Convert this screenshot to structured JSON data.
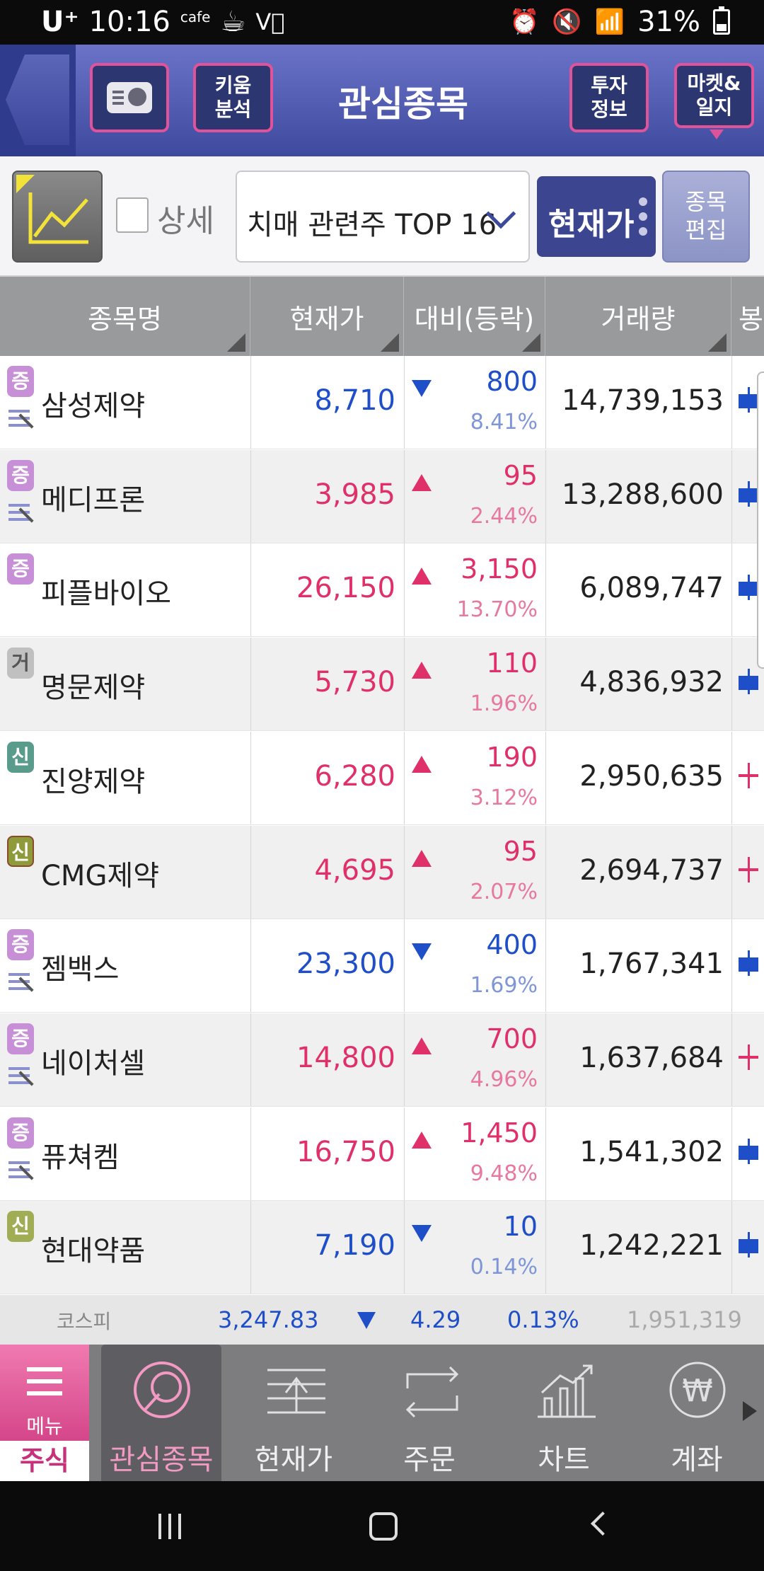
{
  "status_bar": {
    "carrier": "U⁺",
    "time": "10:16",
    "cafe": "cafe",
    "battery": "31%"
  },
  "header": {
    "title": "관심종목",
    "kiwoom_analysis_l1": "키움",
    "kiwoom_analysis_l2": "분석",
    "invest_info_l1": "투자",
    "invest_info_l2": "정보",
    "market_journal_l1": "마켓&",
    "market_journal_l2": "일지"
  },
  "toolbar": {
    "detail_label": "상세",
    "group_name": "치매 관련주 TOP 16",
    "current_price_label": "현재가",
    "edit_l1": "종목",
    "edit_l2": "편집"
  },
  "columns": {
    "name": "종목명",
    "price": "현재가",
    "change": "대비(등락)",
    "volume": "거래량",
    "candle": "봉"
  },
  "rows": [
    {
      "badge": "증",
      "badge_type": "jeung",
      "has_sub": true,
      "name": "삼성제약",
      "price": "8,710",
      "dir": "down",
      "change": "800",
      "pct": "8.41%",
      "volume": "14,739,153",
      "candle_color": "#1f4fc8"
    },
    {
      "badge": "증",
      "badge_type": "jeung",
      "has_sub": true,
      "name": "메디프론",
      "price": "3,985",
      "dir": "up",
      "change": "95",
      "pct": "2.44%",
      "volume": "13,288,600",
      "candle_color": "#1f4fc8"
    },
    {
      "badge": "증",
      "badge_type": "jeung",
      "has_sub": false,
      "name": "피플바이오",
      "price": "26,150",
      "dir": "up",
      "change": "3,150",
      "pct": "13.70%",
      "volume": "6,089,747",
      "candle_color": "#1f4fc8"
    },
    {
      "badge": "거",
      "badge_type": "geo",
      "has_sub": false,
      "name": "명문제약",
      "price": "5,730",
      "dir": "up",
      "change": "110",
      "pct": "1.96%",
      "volume": "4,836,932",
      "candle_color": "#1f4fc8"
    },
    {
      "badge": "신",
      "badge_type": "shin",
      "has_sub": false,
      "name": "진양제약",
      "price": "6,280",
      "dir": "up",
      "change": "190",
      "pct": "3.12%",
      "volume": "2,950,635",
      "candle_color": "#e0306a"
    },
    {
      "badge": "신",
      "badge_type": "shin2",
      "has_sub": false,
      "name": "CMG제약",
      "price": "4,695",
      "dir": "up",
      "change": "95",
      "pct": "2.07%",
      "volume": "2,694,737",
      "candle_color": "#e0306a"
    },
    {
      "badge": "증",
      "badge_type": "jeung",
      "has_sub": true,
      "name": "젬백스",
      "price": "23,300",
      "dir": "down",
      "change": "400",
      "pct": "1.69%",
      "volume": "1,767,341",
      "candle_color": "#1f4fc8"
    },
    {
      "badge": "증",
      "badge_type": "jeung",
      "has_sub": true,
      "name": "네이처셀",
      "price": "14,800",
      "dir": "up",
      "change": "700",
      "pct": "4.96%",
      "volume": "1,637,684",
      "candle_color": "#e0306a"
    },
    {
      "badge": "증",
      "badge_type": "jeung",
      "has_sub": true,
      "name": "퓨쳐켐",
      "price": "16,750",
      "dir": "up",
      "change": "1,450",
      "pct": "9.48%",
      "volume": "1,541,302",
      "candle_color": "#1f4fc8"
    },
    {
      "badge": "신",
      "badge_type": "shin3",
      "has_sub": false,
      "name": "현대약품",
      "price": "7,190",
      "dir": "down",
      "change": "10",
      "pct": "0.14%",
      "volume": "1,242,221",
      "candle_color": "#1f4fc8"
    }
  ],
  "index_bar": {
    "name": "코스피",
    "value": "3,247.83",
    "dir": "down",
    "change": "4.29",
    "pct": "0.13%",
    "volume": "1,951,319"
  },
  "bottom_nav": {
    "menu_label": "메뉴",
    "stock_label": "주식",
    "items": [
      {
        "label": "관심종목",
        "icon": "watchlist-icon",
        "active": true
      },
      {
        "label": "현재가",
        "icon": "current-price-icon",
        "active": false
      },
      {
        "label": "주문",
        "icon": "order-icon",
        "active": false
      },
      {
        "label": "차트",
        "icon": "chart-icon",
        "active": false
      },
      {
        "label": "계좌",
        "icon": "account-icon",
        "active": false
      }
    ]
  },
  "colors": {
    "up": "#e0306a",
    "down": "#1f4fc8",
    "accent": "#e0529a",
    "header": "#3e4a9e"
  }
}
